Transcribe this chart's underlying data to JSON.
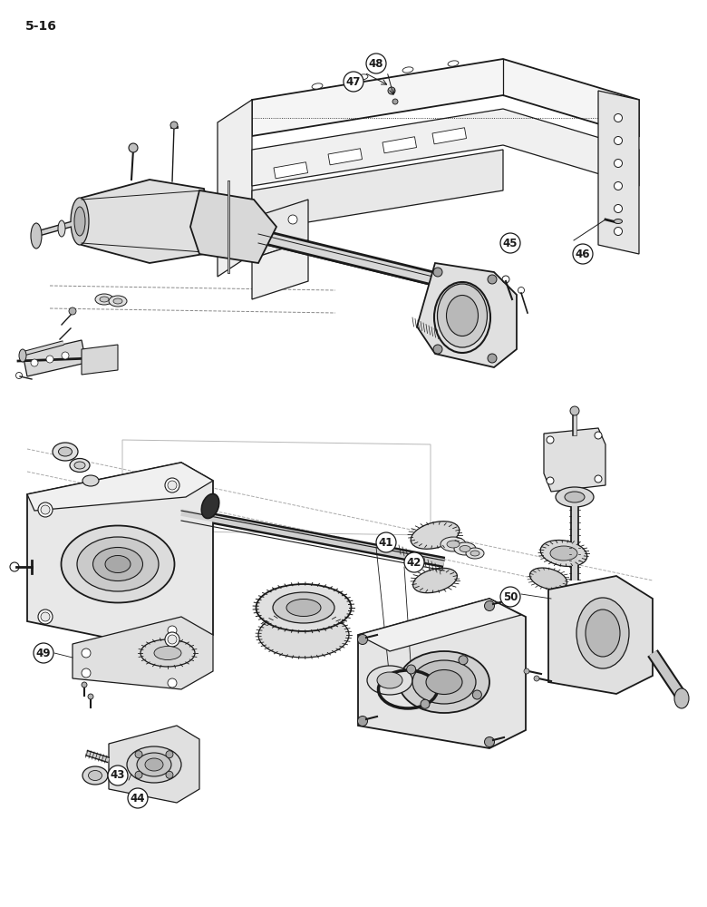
{
  "page_label": "5-16",
  "background_color": "#ffffff",
  "figsize": [
    7.8,
    10.0
  ],
  "dpi": 100,
  "line_color": "#1a1a1a",
  "gray_fill": "#e8e8e8",
  "mid_gray": "#cccccc",
  "dark_gray": "#888888"
}
